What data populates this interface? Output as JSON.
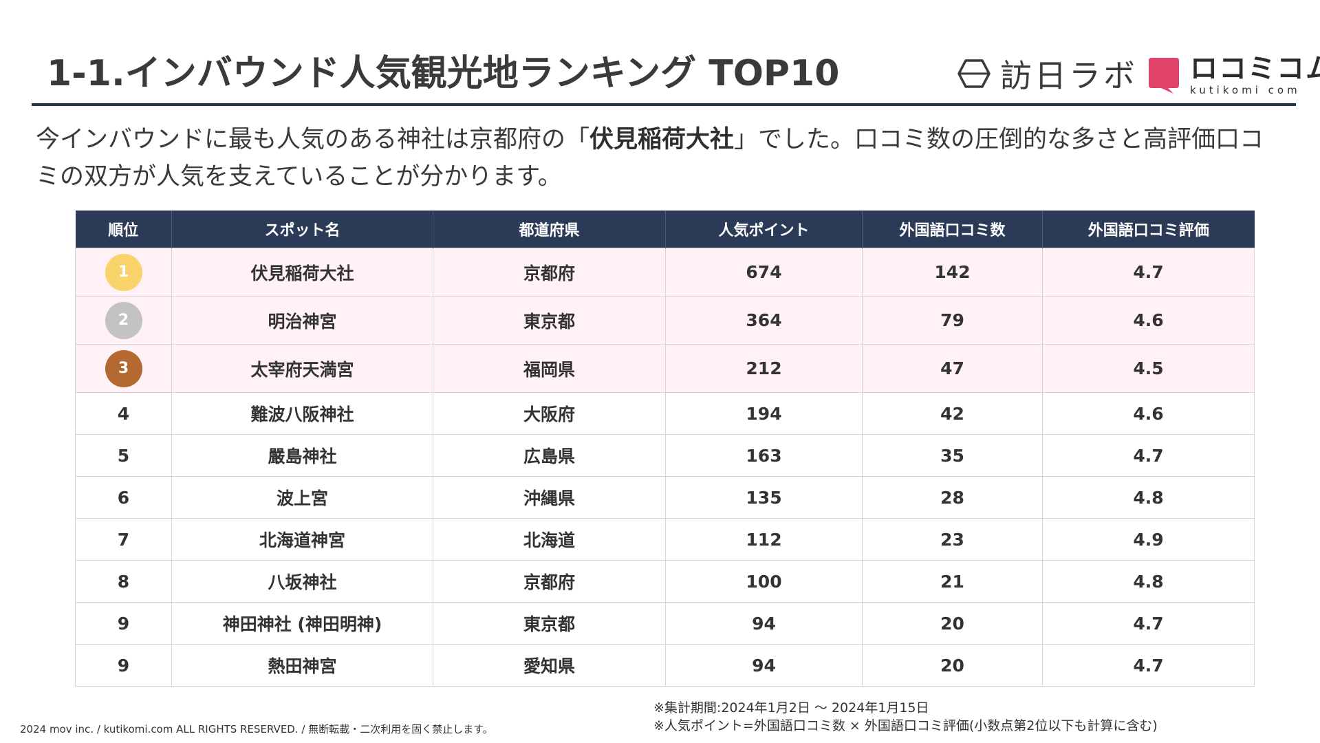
{
  "header": {
    "title": "1-1.インバウンド人気観光地ランキング TOP10",
    "logo_houjitsu": "訪日ラボ",
    "logo_kutikomi_ja": "ロコミコム",
    "logo_kutikomi_en": "kutikomi com"
  },
  "lead": {
    "before": "今インバウンドに最も人気のある神社は京都府の「",
    "highlight": "伏見稲荷大社",
    "after": "」でした。口コミ数の圧倒的な多さと高評価口コミの双方が人気を支えていることが分かります。"
  },
  "table": {
    "headers": [
      "順位",
      "スポット名",
      "都道府県",
      "人気ポイント",
      "外国語口コミ数",
      "外国語口コミ評価"
    ],
    "rows": [
      {
        "rank": "1",
        "spot": "伏見稲荷大社",
        "pref": "京都府",
        "points": "674",
        "reviews": "142",
        "rating": "4.7"
      },
      {
        "rank": "2",
        "spot": "明治神宮",
        "pref": "東京都",
        "points": "364",
        "reviews": "79",
        "rating": "4.6"
      },
      {
        "rank": "3",
        "spot": "太宰府天満宮",
        "pref": "福岡県",
        "points": "212",
        "reviews": "47",
        "rating": "4.5"
      },
      {
        "rank": "4",
        "spot": "難波八阪神社",
        "pref": "大阪府",
        "points": "194",
        "reviews": "42",
        "rating": "4.6"
      },
      {
        "rank": "5",
        "spot": "嚴島神社",
        "pref": "広島県",
        "points": "163",
        "reviews": "35",
        "rating": "4.7"
      },
      {
        "rank": "6",
        "spot": "波上宮",
        "pref": "沖縄県",
        "points": "135",
        "reviews": "28",
        "rating": "4.8"
      },
      {
        "rank": "7",
        "spot": "北海道神宮",
        "pref": "北海道",
        "points": "112",
        "reviews": "23",
        "rating": "4.9"
      },
      {
        "rank": "8",
        "spot": "八坂神社",
        "pref": "京都府",
        "points": "100",
        "reviews": "21",
        "rating": "4.8"
      },
      {
        "rank": "9",
        "spot": "神田神社 (神田明神)",
        "pref": "東京都",
        "points": "94",
        "reviews": "20",
        "rating": "4.7"
      },
      {
        "rank": "9",
        "spot": "熱田神宮",
        "pref": "愛知県",
        "points": "94",
        "reviews": "20",
        "rating": "4.7"
      }
    ]
  },
  "footer": {
    "copyright": "2024 mov inc. / kutikomi.com ALL RIGHTS RESERVED. / 無断転載・二次利用を固く禁止します。",
    "note_period": "※集計期間:2024年1月2日 〜 2024年1月15日",
    "note_formula": "※人気ポイント=外国語口コミ数 × 外国語口コミ評価(小数点第2位以下も計算に含む)"
  },
  "colors": {
    "header_bg": "#2b3a57",
    "top_row_bg": "#fff1f5",
    "gold": "#fad36a",
    "silver": "#c3c3c3",
    "bronze": "#b3692f",
    "brand_pink": "#e0446a"
  },
  "icons": {
    "houjitsu_logo": "hexagon-icon",
    "kutikomi_logo": "speech-bubble-icon"
  }
}
